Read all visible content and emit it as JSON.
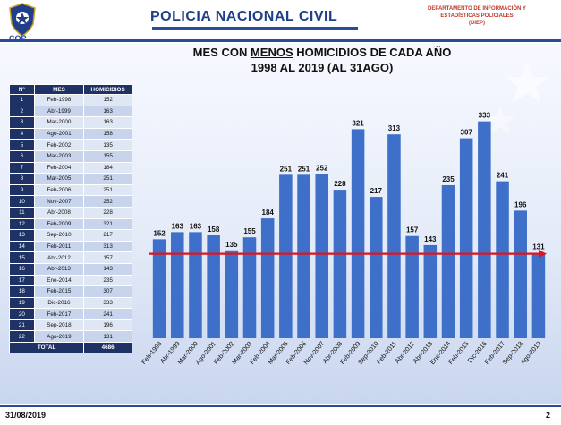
{
  "header": {
    "org_title": "POLICIA NACIONAL CIVIL",
    "cop": "COP",
    "dept_line1": "DEPARTAMENTO DE INFORMACIÓN Y",
    "dept_line2": "ESTADÍSTICAS POLICIALES",
    "dept_line3": "(DIEP)"
  },
  "table": {
    "headers": [
      "N°",
      "MES",
      "HOMICIDIOS"
    ],
    "total_label": "TOTAL",
    "total_value": "4686"
  },
  "footer": {
    "date": "31/08/2019",
    "page": "2"
  },
  "colors": {
    "bar": "#3f70c9",
    "trend": "#e0141e",
    "header": "#1f3266"
  },
  "chart_data": {
    "type": "bar",
    "title_line1_pre": "MES CON ",
    "title_line1_u": "MENOS",
    "title_line1_post": " HOMICIDIOS DE CADA AÑO",
    "title_line2": "1998 AL 2019 (AL 31AGO)",
    "categories": [
      "Feb-1998",
      "Abr-1999",
      "Mar-2000",
      "Ago-2001",
      "Feb-2002",
      "Mar-2003",
      "Feb-2004",
      "Mar-2005",
      "Feb-2006",
      "Nov-2007",
      "Abr-2008",
      "Feb-2009",
      "Sep-2010",
      "Feb-2011",
      "Abr-2012",
      "Abr-2013",
      "Ene-2014",
      "Feb-2015",
      "Dic-2016",
      "Feb-2017",
      "Sep-2018",
      "Ago-2019"
    ],
    "values": [
      152,
      163,
      163,
      158,
      135,
      155,
      184,
      251,
      251,
      252,
      228,
      321,
      217,
      313,
      157,
      143,
      235,
      307,
      333,
      241,
      196,
      131
    ],
    "ylim": [
      0,
      360
    ],
    "trend_line_value": 131,
    "data_labels": true,
    "grid": false,
    "legend": "none"
  }
}
